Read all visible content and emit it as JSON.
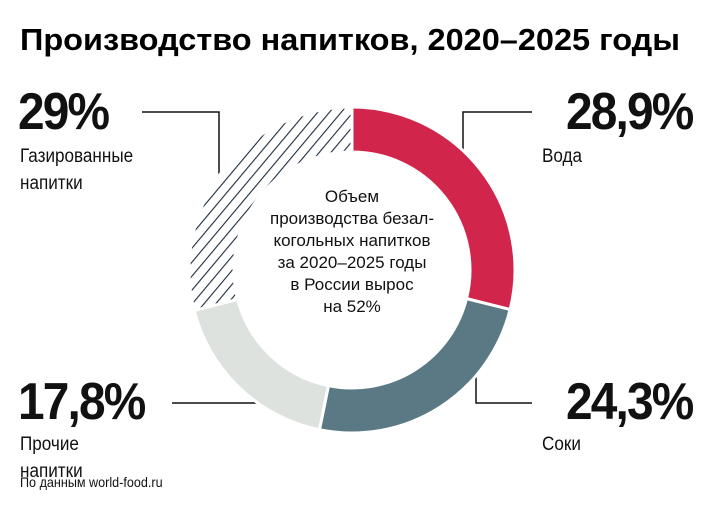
{
  "chart_data": {
    "type": "donut",
    "title": "Производство напитков, 2020–2025 годы",
    "categories": [
      "Вода",
      "Соки",
      "Прочие напитки",
      "Газированные напитки"
    ],
    "values": [
      28.9,
      24.3,
      17.8,
      29
    ],
    "value_labels": [
      "28,9%",
      "24,3%",
      "17,8%",
      "29%"
    ],
    "colors": [
      "#d1254b",
      "#5a7984",
      "#dde2df",
      "#1d2b3c"
    ],
    "hatched": [
      false,
      false,
      false,
      true
    ],
    "annotation": [
      "Объем",
      "производства безал-",
      "когольных напитков",
      "за 2020–2025 годы",
      "в России вырос",
      "на 52%"
    ],
    "source": "По данным world-food.ru"
  }
}
